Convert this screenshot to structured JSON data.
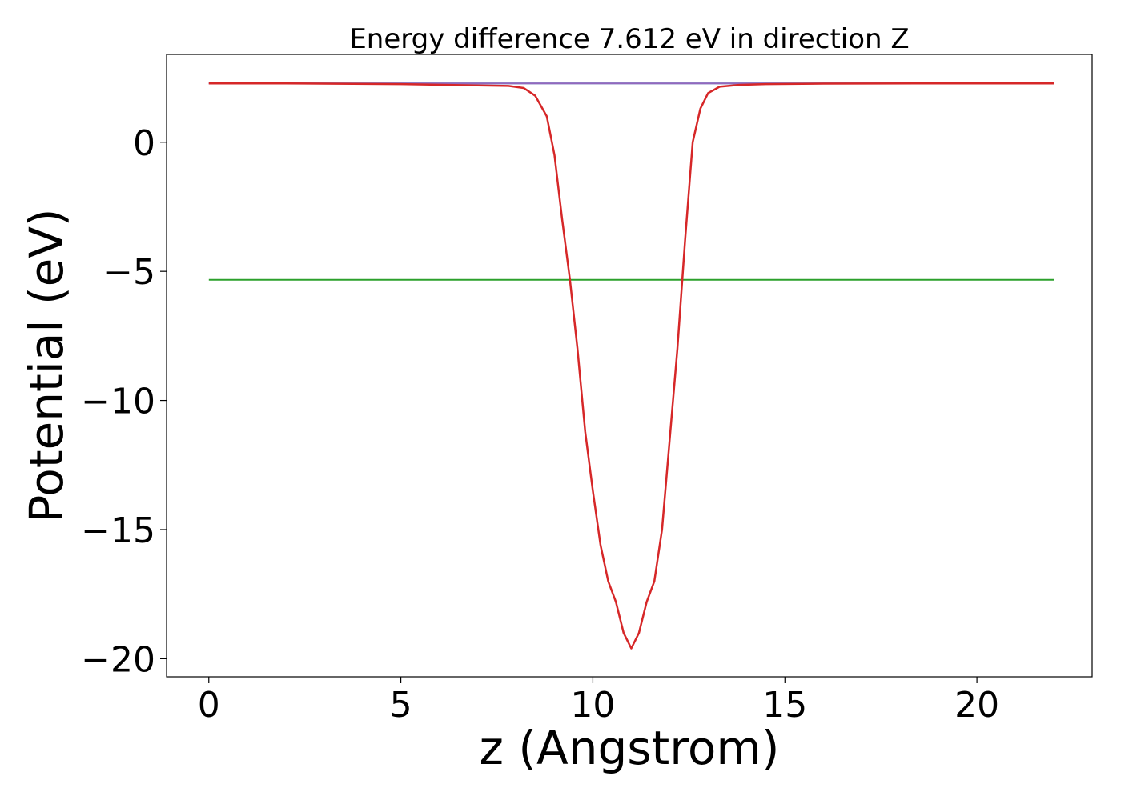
{
  "chart_data": {
    "type": "line",
    "title": "Energy difference 7.612 eV in direction Z",
    "xlabel": "z (Angstrom)",
    "ylabel": "Potential (eV)",
    "xlim": [
      -1.1,
      23.0
    ],
    "ylim": [
      -20.7,
      3.4
    ],
    "xticks": [
      0,
      5,
      10,
      15,
      20
    ],
    "yticks": [
      0,
      -5,
      -10,
      -15,
      -20
    ],
    "grid": false,
    "series": [
      {
        "color": "#1f77b4",
        "x": [
          0,
          22
        ],
        "y": [
          2.28,
          2.28
        ]
      },
      {
        "color": "#2ca02c",
        "x": [
          0,
          22
        ],
        "y": [
          -5.33,
          -5.33
        ]
      },
      {
        "color": "#9467bd",
        "x": [
          0,
          22
        ],
        "y": [
          2.28,
          2.28
        ]
      },
      {
        "color": "#d62728",
        "x": [
          0,
          2,
          5,
          7,
          7.8,
          8.2,
          8.5,
          8.8,
          9.0,
          9.2,
          9.4,
          9.6,
          9.8,
          10.0,
          10.2,
          10.4,
          10.6,
          10.8,
          11.0,
          11.2,
          11.4,
          11.6,
          11.8,
          12.0,
          12.2,
          12.4,
          12.6,
          12.8,
          13.0,
          13.3,
          13.8,
          14.5,
          16,
          19,
          22
        ],
        "y": [
          2.28,
          2.28,
          2.25,
          2.2,
          2.18,
          2.1,
          1.8,
          1.0,
          -0.5,
          -3.0,
          -5.3,
          -8.0,
          -11.2,
          -13.5,
          -15.6,
          -17.0,
          -17.8,
          -19.0,
          -19.6,
          -19.0,
          -17.8,
          -17.0,
          -15.0,
          -11.5,
          -8.0,
          -3.8,
          0.0,
          1.3,
          1.9,
          2.15,
          2.22,
          2.25,
          2.27,
          2.28,
          2.28
        ]
      }
    ]
  }
}
